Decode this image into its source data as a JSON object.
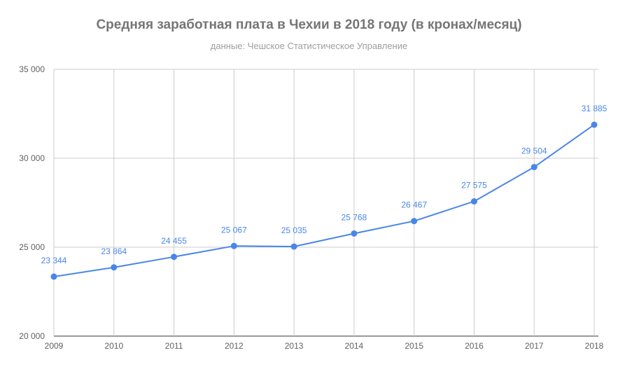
{
  "chart_data": {
    "type": "line",
    "title": "Средняя заработная плата в Чехии в 2018 году (в кронах/месяц)",
    "subtitle": "данные: Чешское Статистическое Управление",
    "x": [
      "2009",
      "2010",
      "2011",
      "2012",
      "2013",
      "2014",
      "2015",
      "2016",
      "2017",
      "2018"
    ],
    "series": [
      {
        "values": [
          23344,
          23864,
          24455,
          25067,
          25035,
          25768,
          26467,
          27575,
          29504,
          31885
        ],
        "value_labels": [
          "23 344",
          "23 864",
          "24 455",
          "25 067",
          "25 035",
          "25 768",
          "26 467",
          "27 575",
          "29 504",
          "31 885"
        ],
        "color": "#4a86e8"
      }
    ],
    "ylim": [
      20000,
      35000
    ],
    "yticks": [
      20000,
      25000,
      30000,
      35000
    ],
    "ytick_labels": [
      "20 000",
      "25 000",
      "30 000",
      "35 000"
    ],
    "grid": true,
    "xlabel": "",
    "ylabel": ""
  }
}
